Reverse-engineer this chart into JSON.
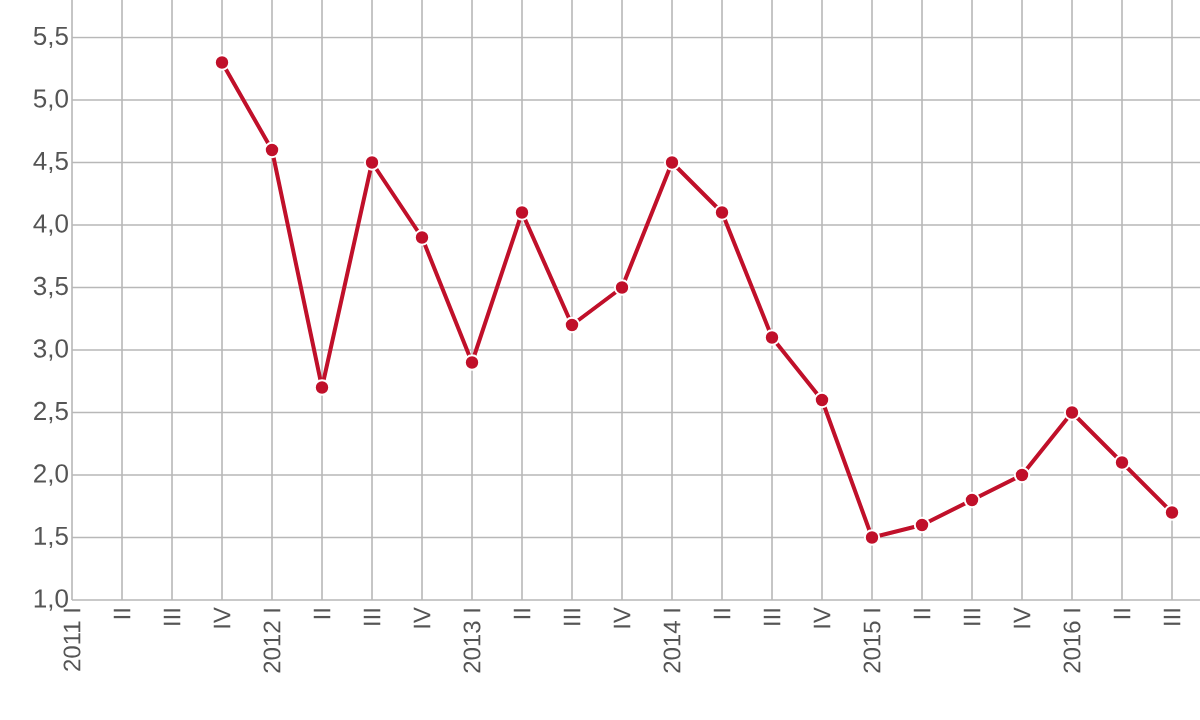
{
  "chart_data": {
    "type": "line",
    "categories": [
      "2011 I",
      "II",
      "III",
      "IV",
      "2012 I",
      "II",
      "III",
      "IV",
      "2013 I",
      "II",
      "III",
      "IV",
      "2014 I",
      "II",
      "III",
      "IV",
      "2015 I",
      "II",
      "III",
      "IV",
      "2016 I",
      "II",
      "III"
    ],
    "values": [
      null,
      null,
      null,
      5.3,
      4.6,
      2.7,
      4.5,
      3.9,
      2.9,
      4.1,
      3.2,
      3.5,
      4.5,
      4.1,
      3.1,
      2.6,
      1.5,
      1.6,
      1.8,
      2.0,
      2.5,
      2.1,
      1.7
    ],
    "color": "#c0102a",
    "ylim": [
      1.0,
      5.8
    ],
    "yticks": [
      {
        "value": 1.0,
        "label": "1,0"
      },
      {
        "value": 1.5,
        "label": "1,5"
      },
      {
        "value": 2.0,
        "label": "2,0"
      },
      {
        "value": 2.5,
        "label": "2,5"
      },
      {
        "value": 3.0,
        "label": "3,0"
      },
      {
        "value": 3.5,
        "label": "3,5"
      },
      {
        "value": 4.0,
        "label": "4,0"
      },
      {
        "value": 4.5,
        "label": "4,5"
      },
      {
        "value": 5.0,
        "label": "5,0"
      },
      {
        "value": 5.5,
        "label": "5,5"
      }
    ],
    "grid": true,
    "marker": "circle",
    "line_style": "solid"
  }
}
